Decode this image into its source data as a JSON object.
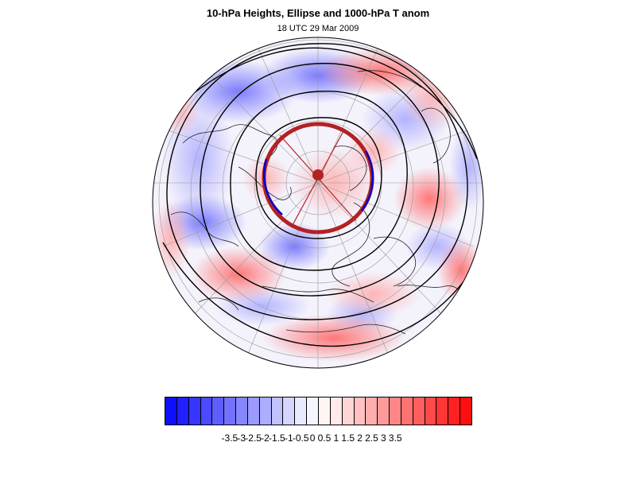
{
  "header": {
    "title": "10-hPa Heights, Ellipse and 1000-hPa T anom",
    "subtitle": "18 UTC 29 Mar 2009"
  },
  "map": {
    "projection": "polar-orthographic",
    "shaded_field": "1000-hPa T anom",
    "contour_field": "10-hPa Heights",
    "overlay": "Ellipse",
    "ellipse_colors": {
      "outline": "#b22222",
      "inner_edge": "#0000cc",
      "center": "#b22222"
    },
    "grid": true,
    "coastlines": true
  },
  "colorbar": {
    "labels": [
      "-3.5",
      "-3",
      "-2.5",
      "-2",
      "-1.5",
      "-1",
      "-0.5",
      "0",
      "0.5",
      "1",
      "1.5",
      "2",
      "2.5",
      "3",
      "3.5"
    ],
    "colors": [
      "#0f0fff",
      "#2121ff",
      "#3636ff",
      "#4a4aff",
      "#5e5eff",
      "#7272ff",
      "#8686ff",
      "#9a9aff",
      "#adadff",
      "#c1c1ff",
      "#d5d5ff",
      "#e9e9ff",
      "#f5f5ff",
      "#fff5f5",
      "#ffe9e9",
      "#ffd5d5",
      "#ffc1c1",
      "#ffadad",
      "#ff9a9a",
      "#ff8686",
      "#ff7272",
      "#ff5e5e",
      "#ff4a4a",
      "#ff3636",
      "#ff2121",
      "#ff0f0f"
    ]
  }
}
